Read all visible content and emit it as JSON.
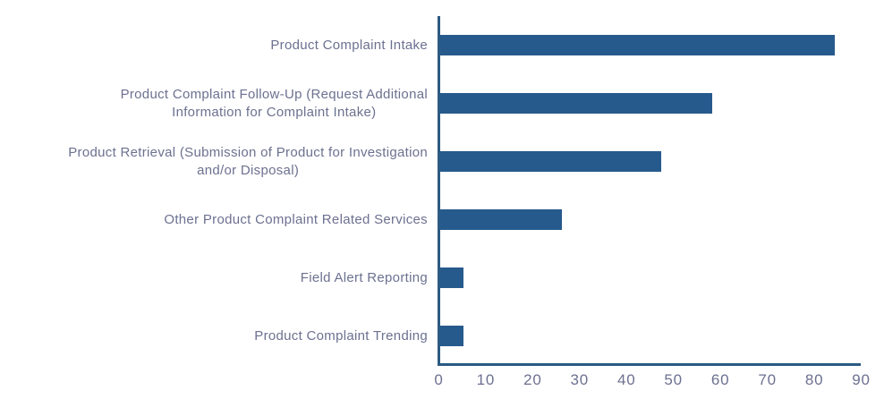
{
  "chart_data": {
    "type": "bar",
    "orientation": "horizontal",
    "title": "",
    "xlabel": "",
    "ylabel": "",
    "categories": [
      "Product Complaint Intake",
      "Product Complaint Follow-Up (Request Additional\nInformation for Complaint Intake)",
      "Product Retrieval (Submission of Product for Investigation\nand/or Disposal)",
      "Other Product Complaint Related Services",
      "Field Alert Reporting",
      "Product Complaint Trending"
    ],
    "values": [
      84,
      58,
      47,
      26,
      5,
      5
    ],
    "xlim": [
      0,
      90
    ],
    "x_ticks": [
      0,
      10,
      20,
      30,
      40,
      50,
      60,
      70,
      80,
      90
    ],
    "grid": false,
    "legend_position": "none",
    "bar_color": "#275a8c",
    "axis_color": "#2b5a82",
    "label_color": "#6c7190"
  }
}
